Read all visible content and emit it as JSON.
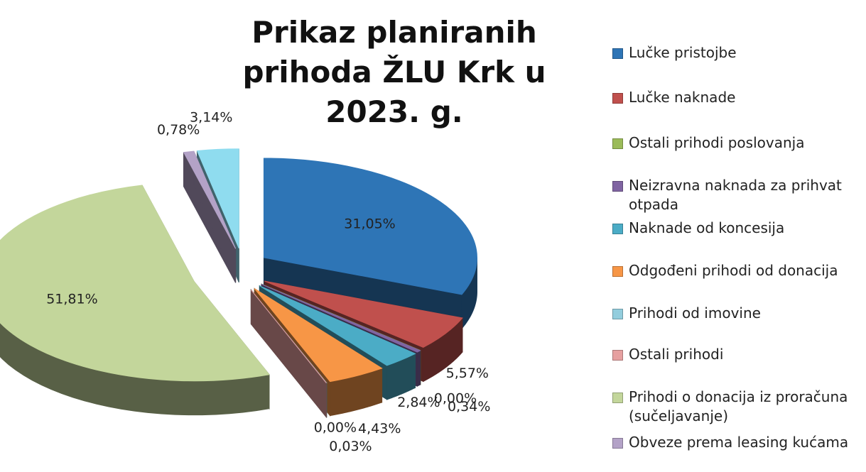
{
  "chart_data": {
    "type": "pie",
    "title": "Prikaz planiranih prihoda ŽLU Krk u 2023. g.",
    "categories": [
      "Lučke pristojbe",
      "Lučke naknade",
      "Ostali prihodi poslovanja",
      "Neizravna naknada za prihvat otpada",
      "Naknade od koncesija",
      "Odgođeni prihodi od donacija",
      "Prihodi od imovine",
      "Ostali prihodi",
      "Prihodi o donacija iz proračuna (sučeljavanje)",
      "Obveze prema leasing kućama",
      null
    ],
    "values": [
      31.05,
      5.57,
      0.0,
      0.34,
      2.84,
      4.43,
      0.03,
      0.0,
      51.81,
      0.78,
      3.14
    ],
    "value_labels": [
      "31,05%",
      "5,57%",
      "0,00%",
      "0,34%",
      "2,84%",
      "4,43%",
      "0,03%",
      "0,00%",
      "51,81%",
      "0,78%",
      "3,14%"
    ],
    "colors": [
      "#2e75b6",
      "#c0504d",
      "#9bbb59",
      "#8064a2",
      "#4bacc6",
      "#f79646",
      "#93cddd",
      "#e6a0a0",
      "#c3d69b",
      "#b3a2c7",
      "#8fdcef"
    ],
    "legend": "right"
  }
}
